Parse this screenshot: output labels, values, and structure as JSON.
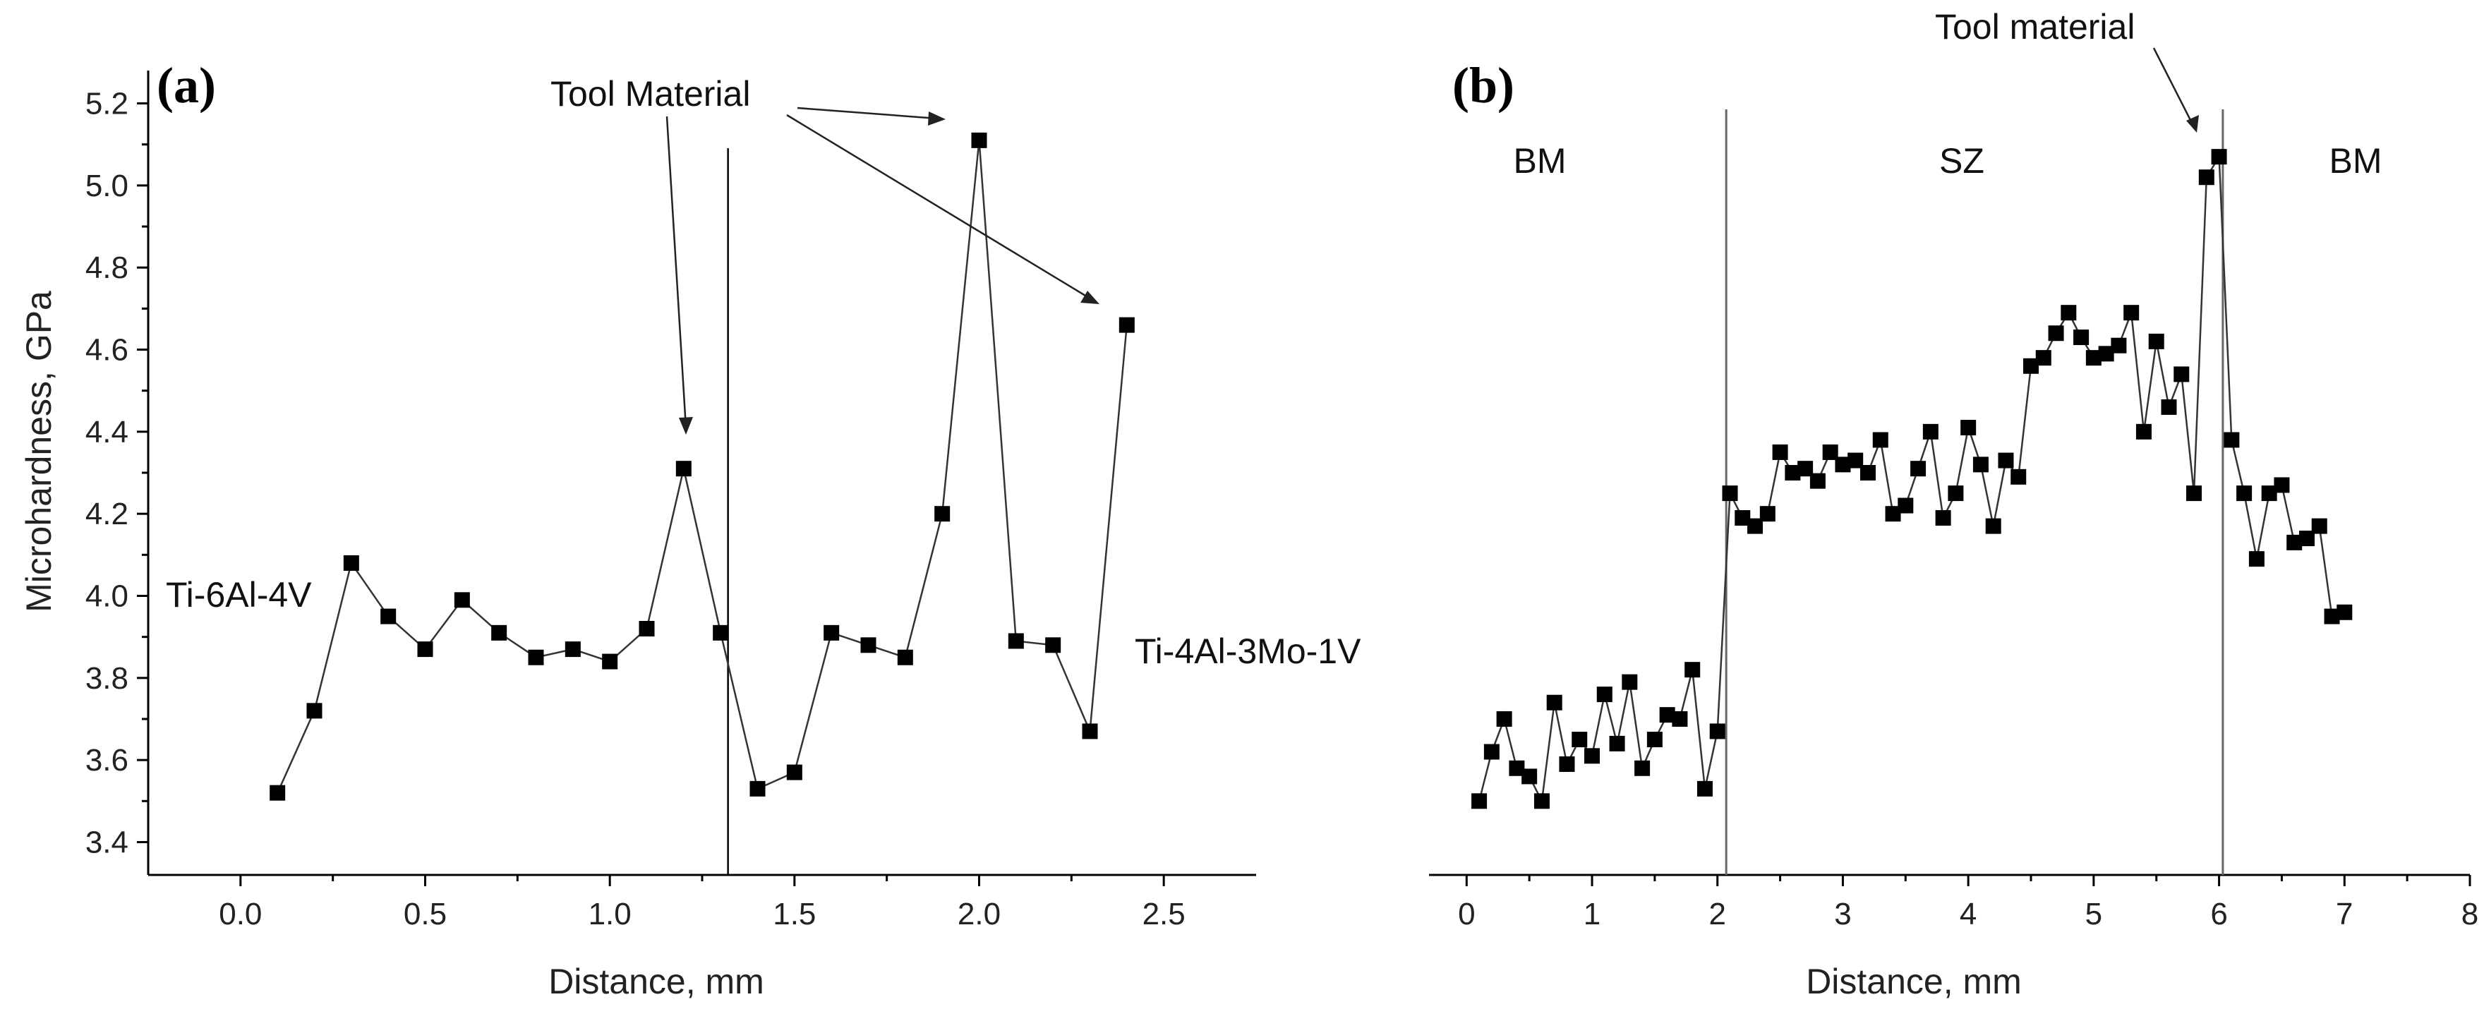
{
  "chart_data": [
    {
      "id": "a",
      "type": "line",
      "panel_label": "(a)",
      "title": "",
      "xlabel": "Distance, mm",
      "ylabel": "Microhardness, GPa",
      "xlim": [
        -0.25,
        2.75
      ],
      "ylim": [
        3.32,
        5.28
      ],
      "xticks": [
        0.0,
        0.5,
        1.0,
        1.5,
        2.0,
        2.5
      ],
      "xtick_labels": [
        "0.0",
        "0.5",
        "1.0",
        "1.5",
        "2.0",
        "2.5"
      ],
      "yticks": [
        3.4,
        3.6,
        3.8,
        4.0,
        4.2,
        4.4,
        4.6,
        4.8,
        5.0,
        5.2
      ],
      "ytick_labels": [
        "3.4",
        "3.6",
        "3.8",
        "4.0",
        "4.2",
        "4.4",
        "4.6",
        "4.8",
        "5.0",
        "5.2"
      ],
      "series": [
        {
          "name": "microhardness",
          "x": [
            0.1,
            0.2,
            0.3,
            0.4,
            0.5,
            0.6,
            0.7,
            0.8,
            0.9,
            1.0,
            1.1,
            1.2,
            1.3,
            1.4,
            1.5,
            1.6,
            1.7,
            1.8,
            1.9,
            2.0,
            2.1,
            2.2,
            2.3,
            2.4
          ],
          "y": [
            3.52,
            3.72,
            4.08,
            3.95,
            3.87,
            3.99,
            3.91,
            3.85,
            3.87,
            3.84,
            3.92,
            4.31,
            3.91,
            3.53,
            3.57,
            3.91,
            3.88,
            3.85,
            4.2,
            5.11,
            3.89,
            3.88,
            3.67,
            4.66
          ]
        }
      ],
      "vlines": [
        1.32
      ],
      "annotations": {
        "left_material": "Ti-6Al-4V",
        "right_material": "Ti-4Al-3Mo-1V",
        "tool": "Tool Material"
      }
    },
    {
      "id": "b",
      "type": "line",
      "panel_label": "(b)",
      "title": "",
      "xlabel": "Distance, mm",
      "ylabel": "",
      "xlim": [
        -0.3,
        8.0
      ],
      "ylim": [
        3.32,
        5.28
      ],
      "xticks": [
        0,
        1,
        2,
        3,
        4,
        5,
        6,
        7,
        8
      ],
      "xtick_labels": [
        "0",
        "1",
        "2",
        "3",
        "4",
        "5",
        "6",
        "7",
        "8"
      ],
      "series": [
        {
          "name": "microhardness",
          "x": [
            0.1,
            0.2,
            0.3,
            0.4,
            0.5,
            0.6,
            0.7,
            0.8,
            0.9,
            1.0,
            1.1,
            1.2,
            1.3,
            1.4,
            1.5,
            1.6,
            1.7,
            1.8,
            1.9,
            2.0,
            2.1,
            2.2,
            2.3,
            2.4,
            2.5,
            2.6,
            2.7,
            2.8,
            2.9,
            3.0,
            3.1,
            3.2,
            3.3,
            3.4,
            3.5,
            3.6,
            3.7,
            3.8,
            3.9,
            4.0,
            4.1,
            4.2,
            4.3,
            4.4,
            4.5,
            4.6,
            4.7,
            4.8,
            4.9,
            5.0,
            5.1,
            5.2,
            5.3,
            5.4,
            5.5,
            5.6,
            5.7,
            5.8,
            5.9,
            6.0,
            6.1,
            6.2,
            6.3,
            6.4,
            6.5,
            6.6,
            6.7,
            6.8,
            6.9,
            7.0
          ],
          "y": [
            3.5,
            3.62,
            3.7,
            3.58,
            3.56,
            3.5,
            3.74,
            3.59,
            3.65,
            3.61,
            3.76,
            3.64,
            3.79,
            3.58,
            3.65,
            3.71,
            3.7,
            3.82,
            3.53,
            3.67,
            4.25,
            4.19,
            4.17,
            4.2,
            4.35,
            4.3,
            4.31,
            4.28,
            4.35,
            4.32,
            4.33,
            4.3,
            4.38,
            4.2,
            4.22,
            4.31,
            4.4,
            4.19,
            4.25,
            4.41,
            4.32,
            4.17,
            4.33,
            4.29,
            4.56,
            4.58,
            4.64,
            4.69,
            4.63,
            4.58,
            4.59,
            4.61,
            4.69,
            4.4,
            4.62,
            4.46,
            4.54,
            4.25,
            5.02,
            5.07,
            4.38,
            4.25,
            4.09,
            4.25,
            4.27,
            4.13,
            4.14,
            4.17,
            3.95,
            3.96
          ]
        }
      ],
      "vlines": [
        2.07,
        6.03
      ],
      "annotations": {
        "left_zone": "BM",
        "mid_zone": "SZ",
        "right_zone": "BM",
        "tool": "Tool material"
      }
    }
  ]
}
